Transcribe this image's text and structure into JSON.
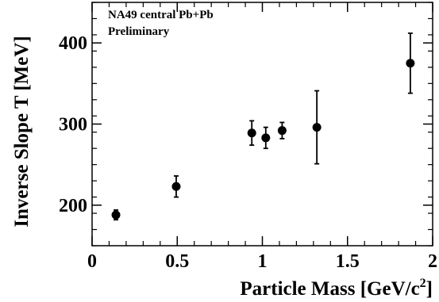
{
  "chart_data": {
    "type": "scatter",
    "xlabel": "Particle Mass [GeV/c",
    "xlabel_sup": "2",
    "xlabel_end": "]",
    "ylabel": "Inverse Slope T [MeV]",
    "xlim": [
      0,
      2
    ],
    "ylim": [
      150,
      450
    ],
    "x_ticks": [
      0,
      0.5,
      1,
      1.5,
      2
    ],
    "x_tick_labels": [
      "0",
      "0.5",
      "1",
      "1.5",
      "2"
    ],
    "y_ticks": [
      200,
      300,
      400
    ],
    "y_tick_labels": [
      "200",
      "300",
      "400"
    ],
    "annotations": [
      "NA49 central Pb+Pb",
      "Preliminary"
    ],
    "grid": false,
    "points": [
      {
        "x": 0.14,
        "y": 188,
        "err": 6
      },
      {
        "x": 0.494,
        "y": 223,
        "err": 13
      },
      {
        "x": 0.938,
        "y": 289,
        "err": 15
      },
      {
        "x": 1.02,
        "y": 283,
        "err": 13
      },
      {
        "x": 1.116,
        "y": 292,
        "err": 10
      },
      {
        "x": 1.32,
        "y": 296,
        "err": 45
      },
      {
        "x": 1.869,
        "y": 375,
        "err": 37
      }
    ],
    "colors": {
      "marker": "#000000",
      "axis": "#000000",
      "frame": "#000000"
    }
  }
}
